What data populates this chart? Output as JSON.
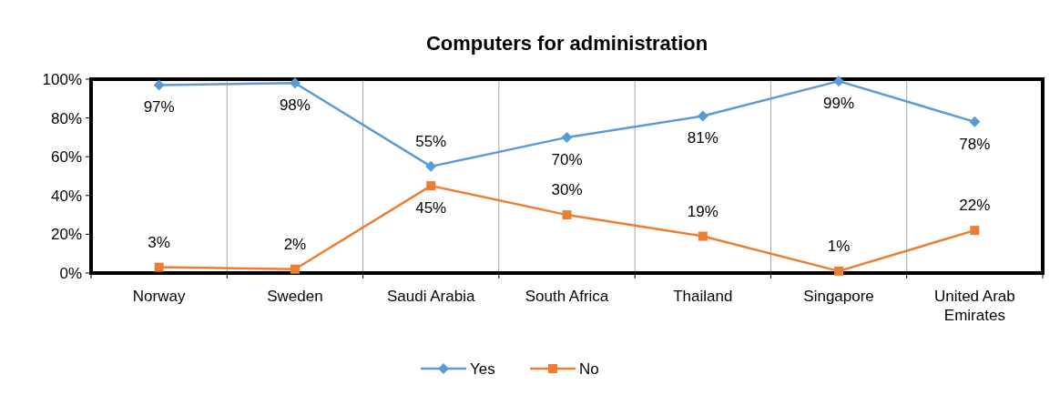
{
  "chart_data": {
    "type": "line",
    "title": "Computers for administration",
    "categories": [
      "Norway",
      "Sweden",
      "Saudi Arabia",
      "South Africa",
      "Thailand",
      "Singapore",
      "United Arab Emirates"
    ],
    "series": [
      {
        "name": "Yes",
        "color": "#5b9bd5",
        "marker": "diamond",
        "values": [
          97,
          98,
          55,
          70,
          81,
          99,
          78
        ]
      },
      {
        "name": "No",
        "color": "#ed7d31",
        "marker": "square",
        "values": [
          3,
          2,
          45,
          30,
          19,
          1,
          22
        ]
      }
    ],
    "ylim": [
      0,
      100
    ],
    "yticks": [
      {
        "value": 0,
        "label": "0%"
      },
      {
        "value": 20,
        "label": "20%"
      },
      {
        "value": 40,
        "label": "40%"
      },
      {
        "value": 60,
        "label": "60%"
      },
      {
        "value": 80,
        "label": "80%"
      },
      {
        "value": 100,
        "label": "100%"
      }
    ],
    "value_labels": [
      [
        "97%",
        "98%",
        "55%",
        "70%",
        "81%",
        "99%",
        "78%"
      ],
      [
        "3%",
        "2%",
        "45%",
        "30%",
        "19%",
        "1%",
        "22%"
      ]
    ],
    "grid": "x",
    "legend": "bottom"
  }
}
